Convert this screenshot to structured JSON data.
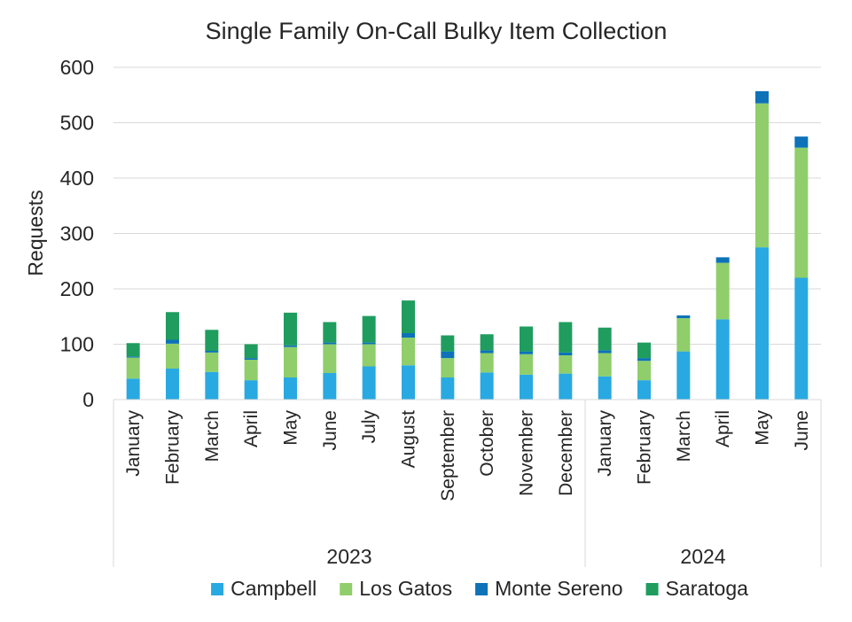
{
  "chart_data": {
    "type": "bar",
    "stacked": true,
    "title": "Single Family On-Call Bulky Item Collection",
    "ylabel": "Requests",
    "xlabel": "",
    "ylim": [
      0,
      600
    ],
    "yticks": [
      0,
      100,
      200,
      300,
      400,
      500,
      600
    ],
    "grid": true,
    "legend_position": "bottom",
    "groups": [
      {
        "label": "2023",
        "categories": [
          "January",
          "February",
          "March",
          "April",
          "May",
          "June",
          "July",
          "August",
          "September",
          "October",
          "November",
          "December"
        ]
      },
      {
        "label": "2024",
        "categories": [
          "January",
          "February",
          "March",
          "April",
          "May",
          "June"
        ]
      }
    ],
    "categories": [
      "January",
      "February",
      "March",
      "April",
      "May",
      "June",
      "July",
      "August",
      "September",
      "October",
      "November",
      "December",
      "January",
      "February",
      "March",
      "April",
      "May",
      "June"
    ],
    "series": [
      {
        "name": "Campbell",
        "color": "#29a9e1",
        "values": [
          38,
          56,
          50,
          35,
          40,
          48,
          60,
          62,
          40,
          49,
          45,
          47,
          42,
          35,
          87,
          145,
          275,
          220
        ]
      },
      {
        "name": "Los Gatos",
        "color": "#8fce6b",
        "values": [
          38,
          45,
          35,
          37,
          55,
          52,
          40,
          50,
          35,
          35,
          37,
          33,
          42,
          35,
          60,
          102,
          260,
          235
        ]
      },
      {
        "name": "Monte Sereno",
        "color": "#0d72b8",
        "values": [
          2,
          7,
          3,
          3,
          3,
          3,
          3,
          8,
          12,
          5,
          5,
          5,
          5,
          5,
          5,
          10,
          22,
          20
        ]
      },
      {
        "name": "Saratoga",
        "color": "#1f9d5e",
        "values": [
          24,
          50,
          38,
          25,
          59,
          37,
          48,
          59,
          29,
          29,
          45,
          55,
          41,
          28,
          0,
          0,
          0,
          0
        ]
      }
    ]
  }
}
